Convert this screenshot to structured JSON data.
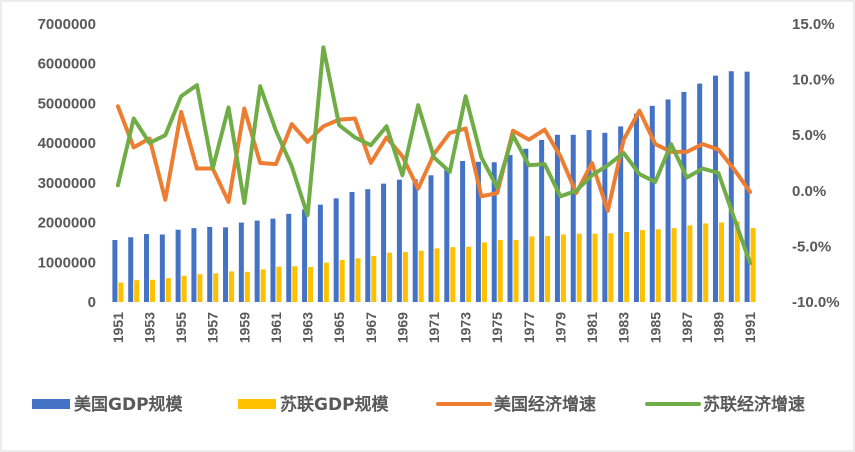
{
  "chart_data": {
    "type": "bar+line",
    "title": "",
    "xlabel": "",
    "ylabel": "",
    "colors": {
      "us_gdp": "#4472C4",
      "ussr_gdp": "#FFC000",
      "us_growth": "#ED7D31",
      "ussr_growth": "#70AD47",
      "axis_text": "#595959",
      "border": "#D9D9D9"
    },
    "x": [
      1951,
      1952,
      1953,
      1954,
      1955,
      1956,
      1957,
      1958,
      1959,
      1960,
      1961,
      1962,
      1963,
      1964,
      1965,
      1966,
      1967,
      1968,
      1969,
      1970,
      1971,
      1972,
      1973,
      1974,
      1975,
      1976,
      1977,
      1978,
      1979,
      1980,
      1981,
      1982,
      1983,
      1984,
      1985,
      1986,
      1987,
      1988,
      1989,
      1990,
      1991
    ],
    "x_tick_labels": [
      "1951",
      "1953",
      "1955",
      "1957",
      "1959",
      "1961",
      "1963",
      "1965",
      "1967",
      "1969",
      "1971",
      "1973",
      "1975",
      "1977",
      "1979",
      "1981",
      "1983",
      "1985",
      "1987",
      "1989",
      "1991"
    ],
    "y_left": {
      "range": [
        0,
        7000000
      ],
      "ticks": [
        "0",
        "1000000",
        "2000000",
        "3000000",
        "4000000",
        "5000000",
        "6000000",
        "7000000"
      ]
    },
    "y_right": {
      "range": [
        -10,
        15
      ],
      "ticks": [
        "-10.0%",
        "-5.0%",
        "0.0%",
        "5.0%",
        "10.0%",
        "15.0%"
      ]
    },
    "grid": false,
    "legend_position": "bottom",
    "series": [
      {
        "name": "美国GDP规模",
        "kind": "bar",
        "axis": "left",
        "values": [
          1560000,
          1630000,
          1710000,
          1700000,
          1820000,
          1860000,
          1890000,
          1880000,
          2000000,
          2050000,
          2100000,
          2220000,
          2330000,
          2450000,
          2610000,
          2770000,
          2840000,
          2980000,
          3080000,
          3090000,
          3190000,
          3350000,
          3550000,
          3530000,
          3520000,
          3700000,
          3860000,
          4080000,
          4210000,
          4210000,
          4330000,
          4260000,
          4420000,
          4740000,
          4940000,
          5100000,
          5290000,
          5500000,
          5700000,
          5810000,
          5800000
        ]
      },
      {
        "name": "苏联GDP规模",
        "kind": "bar",
        "axis": "left",
        "values": [
          490000,
          550000,
          560000,
          600000,
          660000,
          700000,
          720000,
          770000,
          760000,
          820000,
          890000,
          900000,
          880000,
          990000,
          1060000,
          1100000,
          1160000,
          1240000,
          1260000,
          1290000,
          1350000,
          1380000,
          1390000,
          1500000,
          1560000,
          1560000,
          1650000,
          1660000,
          1700000,
          1720000,
          1720000,
          1730000,
          1760000,
          1810000,
          1830000,
          1860000,
          1930000,
          1980000,
          2000000,
          2030000,
          1860000
        ]
      },
      {
        "name": "美国经济增速",
        "kind": "line",
        "axis": "right",
        "values": [
          7.6,
          3.9,
          4.7,
          -0.8,
          7.1,
          2.0,
          2.0,
          -1.0,
          7.4,
          2.5,
          2.4,
          6.0,
          4.4,
          5.8,
          6.4,
          6.5,
          2.5,
          4.8,
          3.1,
          0.2,
          3.3,
          5.2,
          5.6,
          -0.5,
          -0.2,
          5.4,
          4.6,
          5.5,
          3.1,
          -0.2,
          2.5,
          -1.8,
          4.6,
          7.2,
          4.2,
          3.5,
          3.5,
          4.2,
          3.7,
          1.9,
          -0.1
        ]
      },
      {
        "name": "苏联经济增速",
        "kind": "line",
        "axis": "right",
        "values": [
          0.5,
          6.5,
          4.3,
          5.0,
          8.5,
          9.5,
          2.0,
          7.5,
          -1.1,
          9.4,
          5.4,
          2.2,
          -2.2,
          12.9,
          5.9,
          4.8,
          4.1,
          5.8,
          1.4,
          7.7,
          3.0,
          1.7,
          8.5,
          3.0,
          0.3,
          5.0,
          2.3,
          2.4,
          -0.5,
          0.0,
          1.4,
          2.3,
          3.4,
          1.5,
          0.8,
          4.2,
          1.2,
          2.0,
          1.6,
          -2.5,
          -6.5
        ]
      }
    ]
  }
}
